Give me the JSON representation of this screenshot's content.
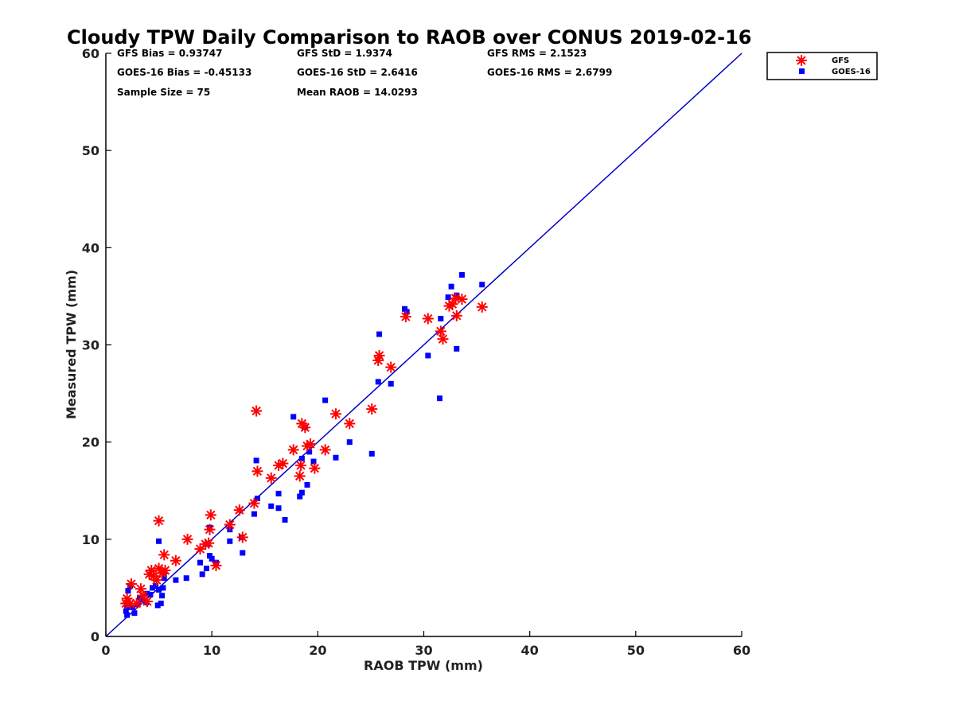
{
  "chart_data": {
    "type": "scatter",
    "title": "Cloudy TPW Daily Comparison to RAOB over CONUS 2019-02-16",
    "xlabel": "RAOB TPW (mm)",
    "ylabel": "Measured TPW (mm)",
    "xlim": [
      0,
      60
    ],
    "ylim": [
      0,
      60
    ],
    "xticks": [
      0,
      10,
      20,
      30,
      40,
      50,
      60
    ],
    "yticks": [
      0,
      10,
      20,
      30,
      40,
      50,
      60
    ],
    "grid": false,
    "legend_position": "top-right-outside",
    "reference_line": {
      "from": [
        0,
        0
      ],
      "to": [
        60,
        60
      ],
      "color": "#0000cc"
    },
    "stats": {
      "gfs_bias": "GFS Bias = 0.93747",
      "gfs_std": "GFS StD = 1.9374",
      "gfs_rms": "GFS RMS = 2.1523",
      "goes_bias": "GOES-16 Bias = -0.45133",
      "goes_std": "GOES-16 StD = 2.6416",
      "goes_rms": "GOES-16 RMS = 2.6799",
      "sample_size": "Sample Size = 75",
      "mean_raob": "Mean RAOB = 14.0293"
    },
    "series": [
      {
        "name": "GFS",
        "marker": "asterisk",
        "color": "#ff0000",
        "points": [
          [
            1.9,
            3.4
          ],
          [
            2.0,
            3.9
          ],
          [
            2.3,
            3.4
          ],
          [
            2.4,
            5.4
          ],
          [
            2.9,
            3.4
          ],
          [
            3.3,
            4.9
          ],
          [
            3.5,
            4.2
          ],
          [
            3.9,
            3.6
          ],
          [
            4.1,
            6.4
          ],
          [
            4.3,
            6.8
          ],
          [
            4.5,
            6.2
          ],
          [
            4.8,
            5.8
          ],
          [
            5.0,
            7.0
          ],
          [
            5.0,
            11.9
          ],
          [
            5.3,
            6.5
          ],
          [
            5.5,
            8.4
          ],
          [
            5.6,
            6.8
          ],
          [
            6.6,
            7.8
          ],
          [
            7.7,
            10.0
          ],
          [
            8.9,
            9.0
          ],
          [
            9.4,
            9.5
          ],
          [
            9.7,
            9.6
          ],
          [
            9.8,
            11.0
          ],
          [
            9.9,
            12.5
          ],
          [
            10.4,
            7.3
          ],
          [
            11.7,
            11.5
          ],
          [
            12.6,
            13.0
          ],
          [
            12.9,
            10.2
          ],
          [
            14.0,
            13.7
          ],
          [
            14.2,
            23.2
          ],
          [
            14.3,
            17.0
          ],
          [
            15.6,
            16.3
          ],
          [
            16.3,
            17.6
          ],
          [
            16.7,
            17.8
          ],
          [
            17.7,
            19.2
          ],
          [
            18.3,
            16.5
          ],
          [
            18.4,
            17.6
          ],
          [
            18.5,
            21.9
          ],
          [
            18.8,
            21.5
          ],
          [
            19.0,
            19.6
          ],
          [
            19.3,
            19.8
          ],
          [
            19.7,
            17.3
          ],
          [
            20.7,
            19.2
          ],
          [
            21.7,
            22.9
          ],
          [
            23.0,
            21.9
          ],
          [
            25.1,
            23.4
          ],
          [
            25.7,
            28.4
          ],
          [
            25.8,
            28.9
          ],
          [
            26.9,
            27.7
          ],
          [
            28.3,
            32.9
          ],
          [
            30.4,
            32.7
          ],
          [
            31.6,
            31.4
          ],
          [
            31.8,
            30.6
          ],
          [
            32.4,
            34.0
          ],
          [
            32.7,
            34.2
          ],
          [
            33.0,
            34.8
          ],
          [
            33.1,
            33.0
          ],
          [
            33.6,
            34.7
          ],
          [
            35.5,
            33.9
          ]
        ]
      },
      {
        "name": "GOES-16",
        "marker": "square",
        "color": "#0000ff",
        "points": [
          [
            1.9,
            2.6
          ],
          [
            2.0,
            2.2
          ],
          [
            2.0,
            3.0
          ],
          [
            2.1,
            4.7
          ],
          [
            2.3,
            5.2
          ],
          [
            2.5,
            3.0
          ],
          [
            2.7,
            2.4
          ],
          [
            3.0,
            3.3
          ],
          [
            3.2,
            4.0
          ],
          [
            3.5,
            3.8
          ],
          [
            3.8,
            3.5
          ],
          [
            3.9,
            4.4
          ],
          [
            4.2,
            4.3
          ],
          [
            4.4,
            5.0
          ],
          [
            4.7,
            5.2
          ],
          [
            4.9,
            3.2
          ],
          [
            5.0,
            4.8
          ],
          [
            5.0,
            9.8
          ],
          [
            5.2,
            3.4
          ],
          [
            5.3,
            4.2
          ],
          [
            5.4,
            5.0
          ],
          [
            5.5,
            6.0
          ],
          [
            5.5,
            6.6
          ],
          [
            6.6,
            5.8
          ],
          [
            7.6,
            6.0
          ],
          [
            8.9,
            7.6
          ],
          [
            9.1,
            6.4
          ],
          [
            9.5,
            7.0
          ],
          [
            9.6,
            9.5
          ],
          [
            9.8,
            11.2
          ],
          [
            9.8,
            8.3
          ],
          [
            10.0,
            8.0
          ],
          [
            10.4,
            7.6
          ],
          [
            11.7,
            9.8
          ],
          [
            11.7,
            11.0
          ],
          [
            12.8,
            10.2
          ],
          [
            12.9,
            8.6
          ],
          [
            14.0,
            12.6
          ],
          [
            14.2,
            18.1
          ],
          [
            14.3,
            14.2
          ],
          [
            15.6,
            13.4
          ],
          [
            16.3,
            14.7
          ],
          [
            16.3,
            13.2
          ],
          [
            16.9,
            12.0
          ],
          [
            17.7,
            22.6
          ],
          [
            18.3,
            14.4
          ],
          [
            18.5,
            14.8
          ],
          [
            18.5,
            18.3
          ],
          [
            18.8,
            21.5
          ],
          [
            19.0,
            15.6
          ],
          [
            19.2,
            19.0
          ],
          [
            19.6,
            18.0
          ],
          [
            20.7,
            24.3
          ],
          [
            21.7,
            18.4
          ],
          [
            23.0,
            20.0
          ],
          [
            25.1,
            18.8
          ],
          [
            25.7,
            26.2
          ],
          [
            25.8,
            31.1
          ],
          [
            26.9,
            26.0
          ],
          [
            28.2,
            33.7
          ],
          [
            28.4,
            33.4
          ],
          [
            30.4,
            28.9
          ],
          [
            31.5,
            24.5
          ],
          [
            31.6,
            32.7
          ],
          [
            32.3,
            34.9
          ],
          [
            32.6,
            36.0
          ],
          [
            33.1,
            29.6
          ],
          [
            33.1,
            35.1
          ],
          [
            33.6,
            37.2
          ],
          [
            35.5,
            36.2
          ]
        ]
      }
    ]
  }
}
